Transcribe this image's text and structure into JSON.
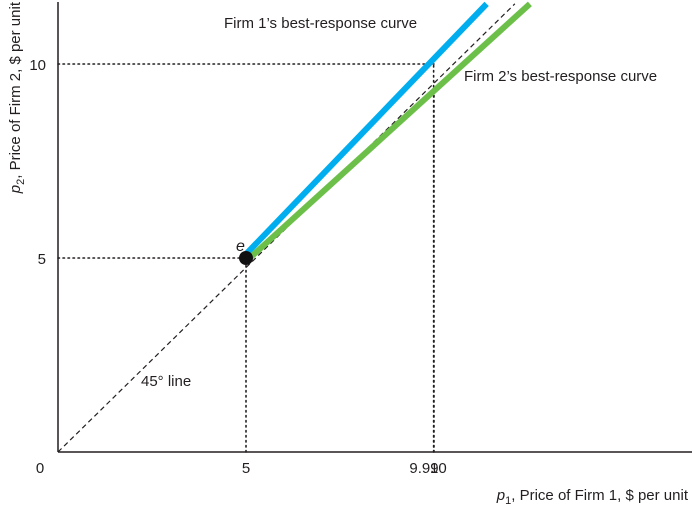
{
  "chart_data": {
    "type": "line",
    "xlabel": {
      "var": "p",
      "sub": "1",
      "text": ", Price of Firm 1, $ per unit"
    },
    "ylabel": {
      "var": "p",
      "sub": "2",
      "text": ", Price of Firm 2, $ per unit"
    },
    "origin_label": "0",
    "xlim": [
      0,
      16.9
    ],
    "ylim": [
      0,
      11.55
    ],
    "x_ticks": [
      {
        "value": 5,
        "label": "5"
      },
      {
        "value": 9.99,
        "label": "9.99"
      },
      {
        "value": 10,
        "label": "10"
      }
    ],
    "y_ticks": [
      {
        "value": 5,
        "label": "5"
      },
      {
        "value": 10,
        "label": "10"
      }
    ],
    "series": [
      {
        "name": "Firm 1’s best-response curve",
        "color": "#00aeef",
        "points": [
          [
            5,
            5.1
          ],
          [
            11.4,
            11.55
          ]
        ]
      },
      {
        "name": "Firm 2’s best-response curve",
        "color": "#6cc04a",
        "points": [
          [
            5.1,
            5
          ],
          [
            12.55,
            11.55
          ]
        ]
      }
    ],
    "reference_line": {
      "label": "45° line",
      "points": [
        [
          0,
          0
        ],
        [
          12.15,
          11.55
        ]
      ],
      "style": "dashed"
    },
    "equilibrium": {
      "label": "e",
      "x": 5,
      "y": 5
    },
    "guides": [
      {
        "from": [
          0,
          10
        ],
        "to": [
          10,
          10
        ]
      },
      {
        "from": [
          0,
          5
        ],
        "to": [
          5,
          5
        ]
      },
      {
        "from": [
          5,
          0
        ],
        "to": [
          5,
          5
        ]
      },
      {
        "from": [
          9.99,
          0
        ],
        "to": [
          9.99,
          10
        ]
      },
      {
        "from": [
          10,
          0
        ],
        "to": [
          10,
          9.4
        ]
      }
    ]
  }
}
